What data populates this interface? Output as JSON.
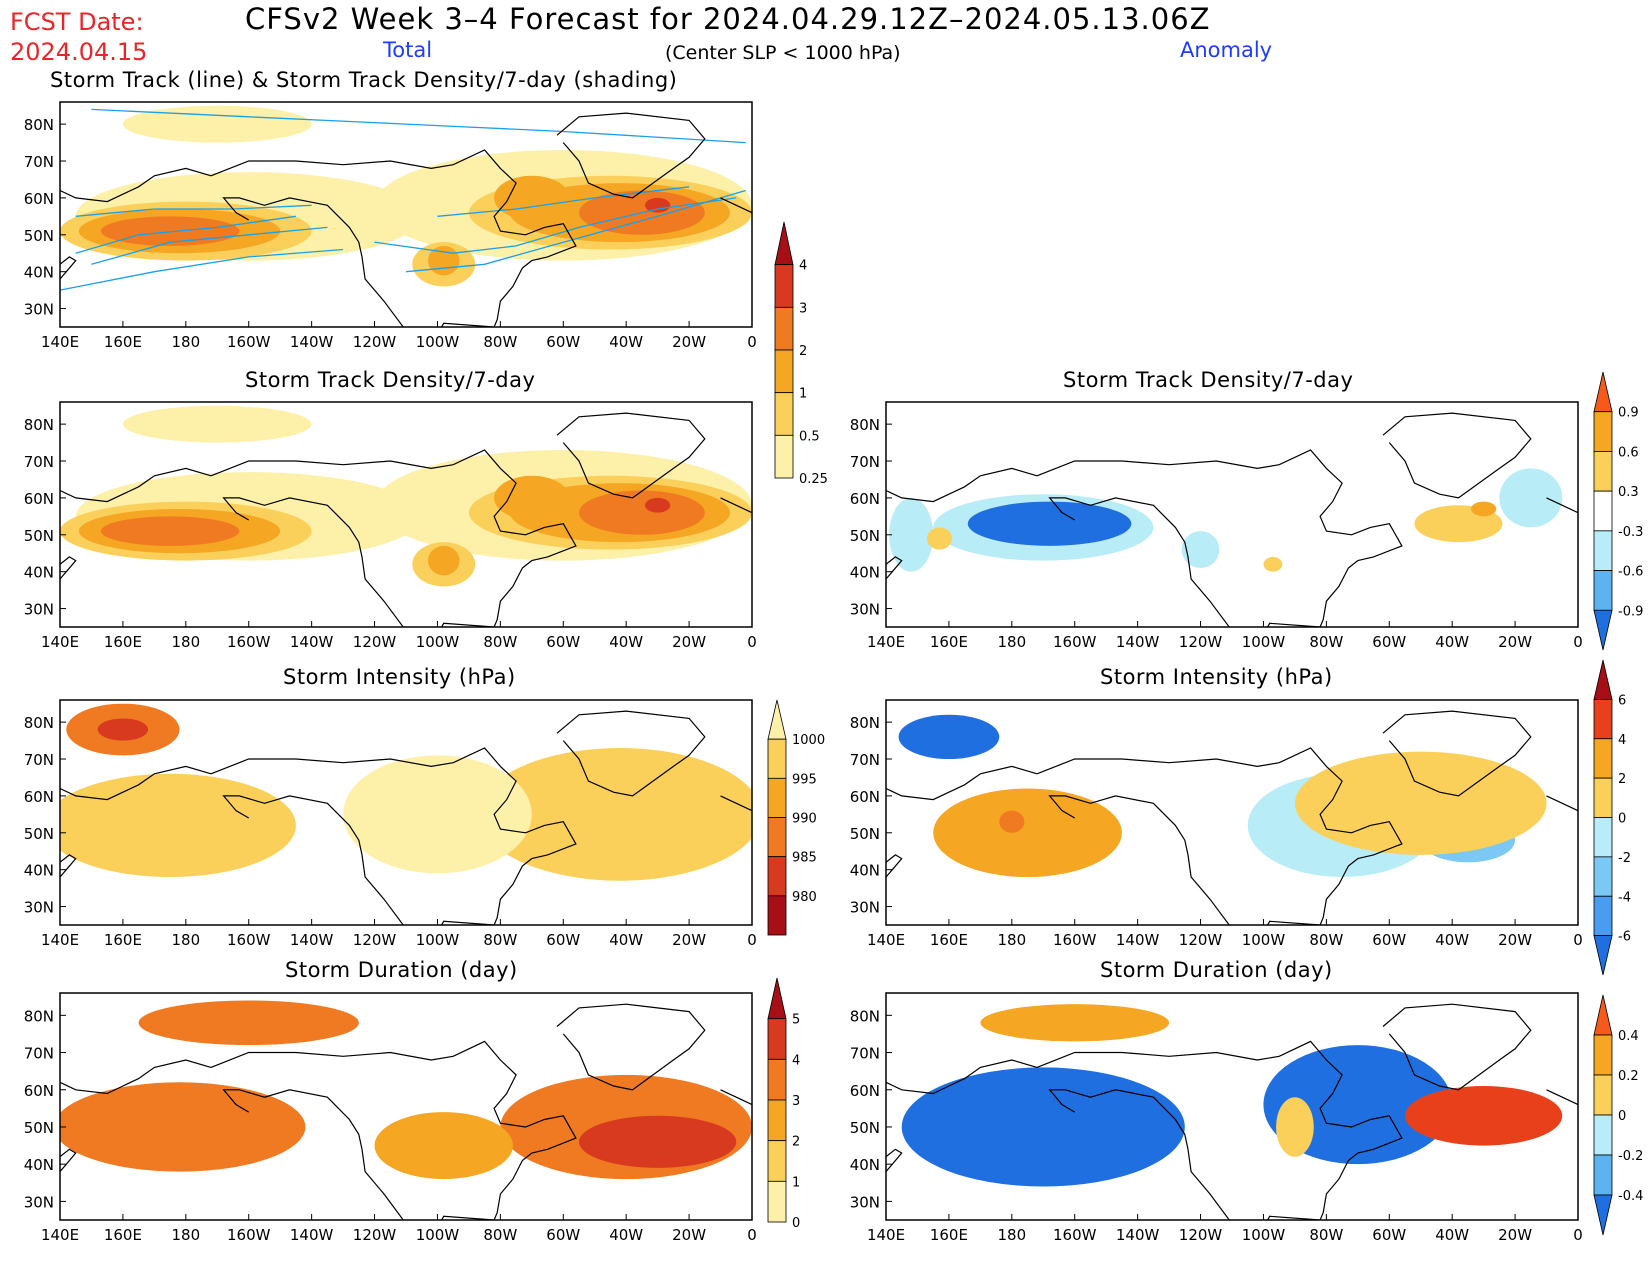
{
  "header": {
    "fcst_label": "FCST Date:",
    "fcst_date": "2024.04.15",
    "title": "CFSv2 Week 3–4 Forecast for 2024.04.29.12Z–2024.05.13.06Z",
    "total_label": "Total",
    "anomaly_label": "Anomaly",
    "subtitle": "(Center SLP < 1000 hPa)"
  },
  "axes": {
    "lat_labels": [
      "80N",
      "70N",
      "60N",
      "50N",
      "40N",
      "30N"
    ],
    "lon_labels": [
      "140E",
      "160E",
      "180",
      "160W",
      "140W",
      "120W",
      "100W",
      "80W",
      "60W",
      "40W",
      "20W",
      "0"
    ]
  },
  "panels": [
    {
      "id": "track-total",
      "title": "Storm Track (line) & Storm Track Density/7-day (shading)",
      "colorbar": "cb-density-total",
      "tracks": true,
      "field": "density_total"
    },
    {
      "id": "density-total",
      "title": "Storm Track Density/7-day",
      "colorbar": "cb-density-total",
      "field": "density_total"
    },
    {
      "id": "density-anom",
      "title": "Storm Track Density/7-day",
      "colorbar": "cb-density-anom",
      "field": "density_anom"
    },
    {
      "id": "intensity-total",
      "title": "Storm Intensity (hPa)",
      "colorbar": "cb-intensity-total",
      "field": "intensity_total"
    },
    {
      "id": "intensity-anom",
      "title": "Storm Intensity (hPa)",
      "colorbar": "cb-intensity-anom",
      "field": "intensity_anom"
    },
    {
      "id": "duration-total",
      "title": "Storm Duration (day)",
      "colorbar": "cb-duration-total",
      "field": "duration_total"
    },
    {
      "id": "duration-anom",
      "title": "Storm Duration (day)",
      "colorbar": "cb-duration-anom",
      "field": "duration_anom"
    }
  ],
  "colorbars": {
    "cb-density-total": {
      "labels": [
        "4",
        "3",
        "2",
        "1",
        "0.5",
        "0.25"
      ],
      "colors": [
        "#a50f15",
        "#d73a1e",
        "#f07a22",
        "#f5a623",
        "#fbd05a",
        "#fdf0a8"
      ],
      "arrow_bottom": false
    },
    "cb-density-anom": {
      "labels": [
        "0.9",
        "0.6",
        "0.3",
        "-0.3",
        "-0.6",
        "-0.9"
      ],
      "colors": [
        "#f55a1a",
        "#f5a623",
        "#fbd05a",
        "#ffffff",
        "#b8ecf7",
        "#5db3f0",
        "#1f6fe0"
      ],
      "arrow_bottom": true
    },
    "cb-intensity-total": {
      "labels": [
        "1000",
        "995",
        "990",
        "985",
        "980"
      ],
      "colors": [
        "#fdf0a8",
        "#fbd05a",
        "#f5a623",
        "#f07a22",
        "#d73a1e",
        "#a50f15"
      ],
      "arrow_top": false
    },
    "cb-intensity-anom": {
      "labels": [
        "6",
        "4",
        "2",
        "0",
        "-2",
        "-4",
        "-6"
      ],
      "colors": [
        "#a50f15",
        "#e8401a",
        "#f5a623",
        "#fbd05a",
        "#b8ecf7",
        "#7cc8f5",
        "#4a9cf0",
        "#1f6fe0"
      ],
      "arrow_bottom": true
    },
    "cb-duration-total": {
      "labels": [
        "5",
        "4",
        "3",
        "2",
        "1",
        "0"
      ],
      "colors": [
        "#a50f15",
        "#d73a1e",
        "#f07a22",
        "#f5a623",
        "#fbd05a",
        "#fdf0a8"
      ],
      "arrow_bottom": false
    },
    "cb-duration-anom": {
      "labels": [
        "0.4",
        "0.2",
        "0",
        "-0.2",
        "-0.4"
      ],
      "colors": [
        "#f55a1a",
        "#f5a623",
        "#fbd05a",
        "#b8ecf7",
        "#5db3f0",
        "#1f6fe0"
      ],
      "arrow_bottom": true
    }
  },
  "fields": {
    "density_total": [
      {
        "lon": 200,
        "lat": 55,
        "rlon": 55,
        "rlat": 12,
        "color": "#fdf0a8"
      },
      {
        "lon": 300,
        "lat": 58,
        "rlon": 60,
        "rlat": 15,
        "color": "#fdf0a8"
      },
      {
        "lon": 190,
        "lat": 80,
        "rlon": 30,
        "rlat": 5,
        "color": "#fdf0a8"
      },
      {
        "lon": 180,
        "lat": 51,
        "rlon": 40,
        "rlat": 8,
        "color": "#fbd05a"
      },
      {
        "lon": 315,
        "lat": 56,
        "rlon": 45,
        "rlat": 10,
        "color": "#fbd05a"
      },
      {
        "lon": 262,
        "lat": 42,
        "rlon": 10,
        "rlat": 6,
        "color": "#fbd05a"
      },
      {
        "lon": 178,
        "lat": 51,
        "rlon": 32,
        "rlat": 6,
        "color": "#f5a623"
      },
      {
        "lon": 318,
        "lat": 56,
        "rlon": 35,
        "rlat": 8,
        "color": "#f5a623"
      },
      {
        "lon": 290,
        "lat": 60,
        "rlon": 12,
        "rlat": 6,
        "color": "#f5a623"
      },
      {
        "lon": 262,
        "lat": 43,
        "rlon": 5,
        "rlat": 4,
        "color": "#f5a623"
      },
      {
        "lon": 175,
        "lat": 51,
        "rlon": 22,
        "rlat": 4,
        "color": "#f07a22"
      },
      {
        "lon": 325,
        "lat": 56,
        "rlon": 20,
        "rlat": 6,
        "color": "#f07a22"
      },
      {
        "lon": 330,
        "lat": 58,
        "rlon": 4,
        "rlat": 2,
        "color": "#d73a1e"
      }
    ],
    "density_anom": [
      {
        "lon": 190,
        "lat": 52,
        "rlon": 35,
        "rlat": 9,
        "color": "#b8ecf7"
      },
      {
        "lon": 148,
        "lat": 50,
        "rlon": 7,
        "rlat": 10,
        "color": "#b8ecf7"
      },
      {
        "lon": 192,
        "lat": 53,
        "rlon": 26,
        "rlat": 6,
        "color": "#1f6fe0"
      },
      {
        "lon": 240,
        "lat": 46,
        "rlon": 6,
        "rlat": 5,
        "color": "#b8ecf7"
      },
      {
        "lon": 345,
        "lat": 60,
        "rlon": 10,
        "rlat": 8,
        "color": "#b8ecf7"
      },
      {
        "lon": 263,
        "lat": 42,
        "rlon": 3,
        "rlat": 2,
        "color": "#fbd05a"
      },
      {
        "lon": 322,
        "lat": 53,
        "rlon": 14,
        "rlat": 5,
        "color": "#fbd05a"
      },
      {
        "lon": 330,
        "lat": 57,
        "rlon": 4,
        "rlat": 2,
        "color": "#f5a623"
      },
      {
        "lon": 157,
        "lat": 49,
        "rlon": 4,
        "rlat": 3,
        "color": "#fbd05a"
      }
    ],
    "intensity_total": [
      {
        "lon": 175,
        "lat": 52,
        "rlon": 40,
        "rlat": 14,
        "color": "#fbd05a"
      },
      {
        "lon": 318,
        "lat": 55,
        "rlon": 45,
        "rlat": 18,
        "color": "#fbd05a"
      },
      {
        "lon": 160,
        "lat": 78,
        "rlon": 18,
        "rlat": 7,
        "color": "#f07a22"
      },
      {
        "lon": 160,
        "lat": 78,
        "rlon": 8,
        "rlat": 3,
        "color": "#d73a1e"
      },
      {
        "lon": 260,
        "lat": 55,
        "rlon": 30,
        "rlat": 16,
        "color": "#fdf0a8"
      }
    ],
    "intensity_anom": [
      {
        "lon": 160,
        "lat": 76,
        "rlon": 16,
        "rlat": 6,
        "color": "#1f6fe0"
      },
      {
        "lon": 185,
        "lat": 50,
        "rlon": 30,
        "rlat": 12,
        "color": "#f5a623"
      },
      {
        "lon": 180,
        "lat": 53,
        "rlon": 4,
        "rlat": 3,
        "color": "#f07a22"
      },
      {
        "lon": 285,
        "lat": 52,
        "rlon": 30,
        "rlat": 14,
        "color": "#b8ecf7"
      },
      {
        "lon": 325,
        "lat": 48,
        "rlon": 15,
        "rlat": 6,
        "color": "#7cc8f5"
      },
      {
        "lon": 310,
        "lat": 58,
        "rlon": 40,
        "rlat": 14,
        "color": "#fbd05a"
      }
    ],
    "duration_total": [
      {
        "lon": 178,
        "lat": 50,
        "rlon": 40,
        "rlat": 12,
        "color": "#f07a22"
      },
      {
        "lon": 320,
        "lat": 50,
        "rlon": 40,
        "rlat": 14,
        "color": "#f07a22"
      },
      {
        "lon": 330,
        "lat": 46,
        "rlon": 25,
        "rlat": 7,
        "color": "#d73a1e"
      },
      {
        "lon": 200,
        "lat": 78,
        "rlon": 35,
        "rlat": 6,
        "color": "#f07a22"
      },
      {
        "lon": 262,
        "lat": 45,
        "rlon": 22,
        "rlat": 9,
        "color": "#f5a623"
      }
    ],
    "duration_anom": [
      {
        "lon": 190,
        "lat": 50,
        "rlon": 45,
        "rlat": 16,
        "color": "#1f6fe0"
      },
      {
        "lon": 290,
        "lat": 56,
        "rlon": 30,
        "rlat": 16,
        "color": "#1f6fe0"
      },
      {
        "lon": 330,
        "lat": 53,
        "rlon": 25,
        "rlat": 8,
        "color": "#e8401a"
      },
      {
        "lon": 270,
        "lat": 50,
        "rlon": 6,
        "rlat": 8,
        "color": "#fbd05a"
      },
      {
        "lon": 200,
        "lat": 78,
        "rlon": 30,
        "rlat": 5,
        "color": "#f5a623"
      }
    ]
  }
}
